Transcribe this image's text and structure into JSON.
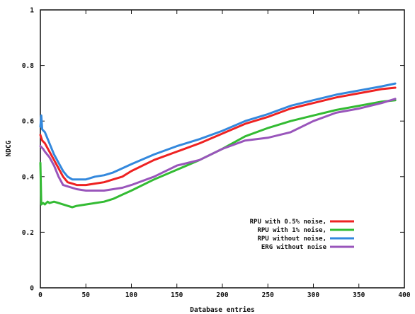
{
  "chart_data": {
    "type": "line",
    "xlabel": "Database entries",
    "ylabel": "NDCG",
    "xlim": [
      0,
      400
    ],
    "ylim": [
      0,
      1
    ],
    "x_ticks": [
      0,
      50,
      100,
      150,
      200,
      250,
      300,
      350,
      400
    ],
    "y_ticks": [
      0,
      0.2,
      0.4,
      0.6,
      0.8,
      1
    ],
    "y_tick_labels": [
      "0",
      "0.2",
      "0.4",
      "0.6",
      "0.8",
      "1"
    ],
    "grid": false,
    "legend_position": "bottom-right",
    "series": [
      {
        "name": "RPU with 0.5% noise,",
        "color": "#ee2222",
        "points": [
          [
            0,
            0.55
          ],
          [
            2,
            0.53
          ],
          [
            5,
            0.52
          ],
          [
            10,
            0.49
          ],
          [
            15,
            0.46
          ],
          [
            20,
            0.43
          ],
          [
            25,
            0.4
          ],
          [
            30,
            0.38
          ],
          [
            35,
            0.375
          ],
          [
            40,
            0.37
          ],
          [
            50,
            0.37
          ],
          [
            60,
            0.375
          ],
          [
            70,
            0.38
          ],
          [
            80,
            0.39
          ],
          [
            90,
            0.4
          ],
          [
            100,
            0.42
          ],
          [
            125,
            0.46
          ],
          [
            150,
            0.49
          ],
          [
            175,
            0.52
          ],
          [
            200,
            0.555
          ],
          [
            225,
            0.59
          ],
          [
            250,
            0.615
          ],
          [
            275,
            0.645
          ],
          [
            300,
            0.665
          ],
          [
            325,
            0.685
          ],
          [
            350,
            0.7
          ],
          [
            375,
            0.715
          ],
          [
            390,
            0.72
          ]
        ]
      },
      {
        "name": "RPU with 1% noise,",
        "color": "#33bb33",
        "points": [
          [
            0,
            0.45
          ],
          [
            1,
            0.3
          ],
          [
            3,
            0.305
          ],
          [
            5,
            0.3
          ],
          [
            8,
            0.31
          ],
          [
            10,
            0.305
          ],
          [
            15,
            0.31
          ],
          [
            20,
            0.305
          ],
          [
            25,
            0.3
          ],
          [
            30,
            0.295
          ],
          [
            35,
            0.29
          ],
          [
            40,
            0.295
          ],
          [
            50,
            0.3
          ],
          [
            60,
            0.305
          ],
          [
            70,
            0.31
          ],
          [
            80,
            0.32
          ],
          [
            90,
            0.335
          ],
          [
            100,
            0.35
          ],
          [
            125,
            0.39
          ],
          [
            150,
            0.425
          ],
          [
            175,
            0.46
          ],
          [
            200,
            0.5
          ],
          [
            225,
            0.545
          ],
          [
            250,
            0.575
          ],
          [
            275,
            0.6
          ],
          [
            300,
            0.62
          ],
          [
            325,
            0.64
          ],
          [
            350,
            0.655
          ],
          [
            375,
            0.67
          ],
          [
            390,
            0.675
          ]
        ]
      },
      {
        "name": "RPU without noise,",
        "color": "#3388dd",
        "points": [
          [
            0,
            0.58
          ],
          [
            1,
            0.62
          ],
          [
            2,
            0.57
          ],
          [
            5,
            0.56
          ],
          [
            10,
            0.52
          ],
          [
            15,
            0.48
          ],
          [
            20,
            0.45
          ],
          [
            25,
            0.42
          ],
          [
            30,
            0.4
          ],
          [
            35,
            0.39
          ],
          [
            40,
            0.39
          ],
          [
            50,
            0.39
          ],
          [
            60,
            0.4
          ],
          [
            70,
            0.405
          ],
          [
            80,
            0.415
          ],
          [
            90,
            0.43
          ],
          [
            100,
            0.445
          ],
          [
            125,
            0.48
          ],
          [
            150,
            0.51
          ],
          [
            175,
            0.535
          ],
          [
            200,
            0.565
          ],
          [
            225,
            0.6
          ],
          [
            250,
            0.625
          ],
          [
            275,
            0.655
          ],
          [
            300,
            0.675
          ],
          [
            325,
            0.695
          ],
          [
            350,
            0.71
          ],
          [
            375,
            0.725
          ],
          [
            390,
            0.735
          ]
        ]
      },
      {
        "name": "ERG without noise",
        "color": "#9955bb",
        "points": [
          [
            0,
            0.51
          ],
          [
            3,
            0.5
          ],
          [
            5,
            0.49
          ],
          [
            10,
            0.47
          ],
          [
            15,
            0.44
          ],
          [
            20,
            0.4
          ],
          [
            25,
            0.37
          ],
          [
            30,
            0.365
          ],
          [
            40,
            0.355
          ],
          [
            50,
            0.35
          ],
          [
            60,
            0.35
          ],
          [
            70,
            0.35
          ],
          [
            80,
            0.355
          ],
          [
            90,
            0.36
          ],
          [
            100,
            0.37
          ],
          [
            125,
            0.4
          ],
          [
            150,
            0.44
          ],
          [
            175,
            0.46
          ],
          [
            200,
            0.5
          ],
          [
            225,
            0.53
          ],
          [
            250,
            0.54
          ],
          [
            275,
            0.56
          ],
          [
            300,
            0.6
          ],
          [
            325,
            0.63
          ],
          [
            350,
            0.645
          ],
          [
            375,
            0.665
          ],
          [
            390,
            0.68
          ]
        ]
      }
    ]
  }
}
